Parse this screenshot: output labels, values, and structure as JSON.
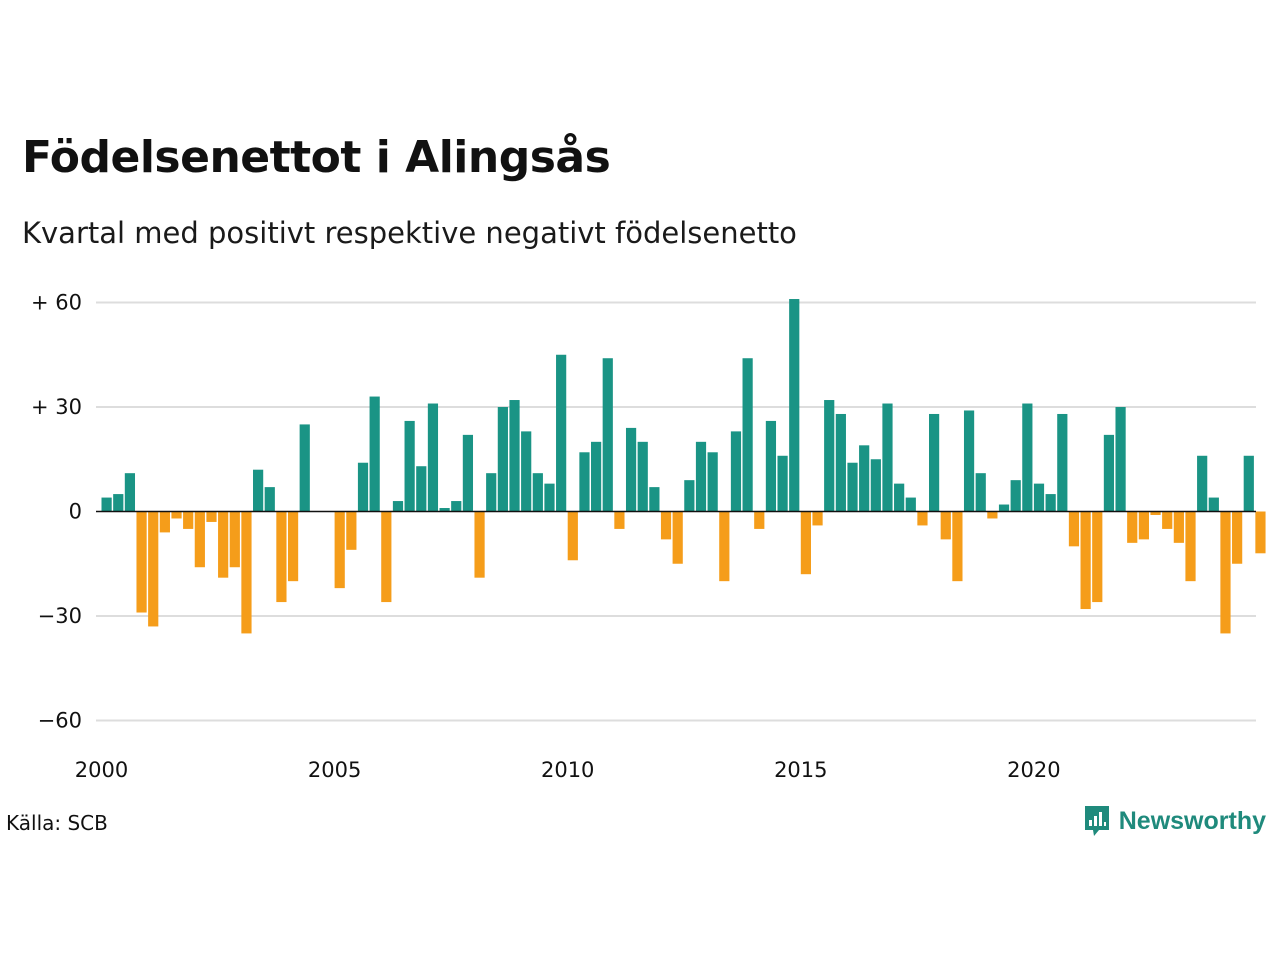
{
  "title": "Födelsenettot i Alingsås",
  "subtitle": "Kvartal med positivt respektive negativt födelsenetto",
  "source": "Källa: SCB",
  "brand": {
    "name": "Newsworthy",
    "icon": "newsworthy-logo-icon"
  },
  "colors": {
    "positive": "#1a9485",
    "negative": "#f59d1a",
    "grid": "#dddddd",
    "zero_line": "#111111"
  },
  "chart_data": {
    "type": "bar",
    "start": "2000 Q1",
    "xticks": [
      "2000",
      "2005",
      "2010",
      "2015",
      "2020"
    ],
    "yticks": [
      {
        "value": 60,
        "label": "+ 60"
      },
      {
        "value": 30,
        "label": "+ 30"
      },
      {
        "value": 0,
        "label": "0"
      },
      {
        "value": -30,
        "label": "−30"
      },
      {
        "value": -60,
        "label": "−60"
      }
    ],
    "ylim": [
      -60,
      60
    ],
    "grid": true,
    "values": [
      4,
      5,
      11,
      -29,
      -33,
      -6,
      -2,
      -5,
      -16,
      -3,
      -19,
      -16,
      -35,
      12,
      7,
      -26,
      -20,
      25,
      0,
      0,
      -22,
      -11,
      14,
      33,
      -26,
      3,
      26,
      13,
      31,
      1,
      3,
      22,
      -19,
      11,
      30,
      32,
      23,
      11,
      8,
      45,
      -14,
      17,
      20,
      44,
      -5,
      24,
      20,
      7,
      -8,
      -15,
      9,
      20,
      17,
      -20,
      23,
      44,
      -5,
      26,
      16,
      61,
      -18,
      -4,
      32,
      28,
      14,
      19,
      15,
      31,
      8,
      4,
      -4,
      28,
      -8,
      -20,
      29,
      11,
      -2,
      2,
      9,
      31,
      8,
      5,
      28,
      -10,
      -28,
      -26,
      22,
      30,
      -9,
      -8,
      -1,
      -5,
      -9,
      -20,
      16,
      4,
      -35,
      -15,
      16,
      -12
    ]
  }
}
